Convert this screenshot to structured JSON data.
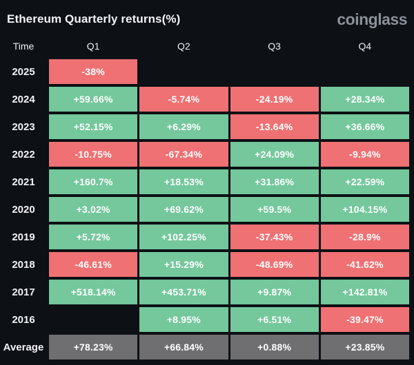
{
  "header": {
    "title": "Ethereum Quarterly returns(%)",
    "logo": "coinglass"
  },
  "colors": {
    "background": "#0d1015",
    "positive": "#74c89c",
    "negative": "#ef7173",
    "average": "#6f6f72",
    "text": "#ffffff",
    "logo_text": "#8b9199"
  },
  "table": {
    "columns": [
      "Time",
      "Q1",
      "Q2",
      "Q3",
      "Q4"
    ],
    "rows": [
      {
        "label": "2025",
        "cells": [
          {
            "text": "-38%",
            "kind": "negative"
          },
          null,
          null,
          null
        ]
      },
      {
        "label": "2024",
        "cells": [
          {
            "text": "+59.66%",
            "kind": "positive"
          },
          {
            "text": "-5.74%",
            "kind": "negative"
          },
          {
            "text": "-24.19%",
            "kind": "negative"
          },
          {
            "text": "+28.34%",
            "kind": "positive"
          }
        ]
      },
      {
        "label": "2023",
        "cells": [
          {
            "text": "+52.15%",
            "kind": "positive"
          },
          {
            "text": "+6.29%",
            "kind": "positive"
          },
          {
            "text": "-13.64%",
            "kind": "negative"
          },
          {
            "text": "+36.66%",
            "kind": "positive"
          }
        ]
      },
      {
        "label": "2022",
        "cells": [
          {
            "text": "-10.75%",
            "kind": "negative"
          },
          {
            "text": "-67.34%",
            "kind": "negative"
          },
          {
            "text": "+24.09%",
            "kind": "positive"
          },
          {
            "text": "-9.94%",
            "kind": "negative"
          }
        ]
      },
      {
        "label": "2021",
        "cells": [
          {
            "text": "+160.7%",
            "kind": "positive"
          },
          {
            "text": "+18.53%",
            "kind": "positive"
          },
          {
            "text": "+31.86%",
            "kind": "positive"
          },
          {
            "text": "+22.59%",
            "kind": "positive"
          }
        ]
      },
      {
        "label": "2020",
        "cells": [
          {
            "text": "+3.02%",
            "kind": "positive"
          },
          {
            "text": "+69.62%",
            "kind": "positive"
          },
          {
            "text": "+59.5%",
            "kind": "positive"
          },
          {
            "text": "+104.15%",
            "kind": "positive"
          }
        ]
      },
      {
        "label": "2019",
        "cells": [
          {
            "text": "+5.72%",
            "kind": "positive"
          },
          {
            "text": "+102.25%",
            "kind": "positive"
          },
          {
            "text": "-37.43%",
            "kind": "negative"
          },
          {
            "text": "-28.9%",
            "kind": "negative"
          }
        ]
      },
      {
        "label": "2018",
        "cells": [
          {
            "text": "-46.61%",
            "kind": "negative"
          },
          {
            "text": "+15.29%",
            "kind": "positive"
          },
          {
            "text": "-48.69%",
            "kind": "negative"
          },
          {
            "text": "-41.62%",
            "kind": "negative"
          }
        ]
      },
      {
        "label": "2017",
        "cells": [
          {
            "text": "+518.14%",
            "kind": "positive"
          },
          {
            "text": "+453.71%",
            "kind": "positive"
          },
          {
            "text": "+9.87%",
            "kind": "positive"
          },
          {
            "text": "+142.81%",
            "kind": "positive"
          }
        ]
      },
      {
        "label": "2016",
        "cells": [
          null,
          {
            "text": "+8.95%",
            "kind": "positive"
          },
          {
            "text": "+6.51%",
            "kind": "positive"
          },
          {
            "text": "-39.47%",
            "kind": "negative"
          }
        ]
      },
      {
        "label": "Average",
        "cells": [
          {
            "text": "+78.23%",
            "kind": "average"
          },
          {
            "text": "+66.84%",
            "kind": "average"
          },
          {
            "text": "+0.88%",
            "kind": "average"
          },
          {
            "text": "+23.85%",
            "kind": "average"
          }
        ]
      }
    ]
  },
  "chart_data": {
    "type": "heatmap",
    "title": "Ethereum Quarterly returns(%)",
    "unit": "%",
    "columns": [
      "Q1",
      "Q2",
      "Q3",
      "Q4"
    ],
    "years": [
      "2025",
      "2024",
      "2023",
      "2022",
      "2021",
      "2020",
      "2019",
      "2018",
      "2017",
      "2016"
    ],
    "values": [
      [
        -38,
        null,
        null,
        null
      ],
      [
        59.66,
        -5.74,
        -24.19,
        28.34
      ],
      [
        52.15,
        6.29,
        -13.64,
        36.66
      ],
      [
        -10.75,
        -67.34,
        24.09,
        -9.94
      ],
      [
        160.7,
        18.53,
        31.86,
        22.59
      ],
      [
        3.02,
        69.62,
        59.5,
        104.15
      ],
      [
        5.72,
        102.25,
        -37.43,
        -28.9
      ],
      [
        -46.61,
        15.29,
        -48.69,
        -41.62
      ],
      [
        518.14,
        453.71,
        9.87,
        142.81
      ],
      [
        null,
        8.95,
        6.51,
        -39.47
      ]
    ],
    "average": [
      78.23,
      66.84,
      0.88,
      23.85
    ],
    "color_coding": "green = positive return, red = negative return, gray = average row"
  }
}
